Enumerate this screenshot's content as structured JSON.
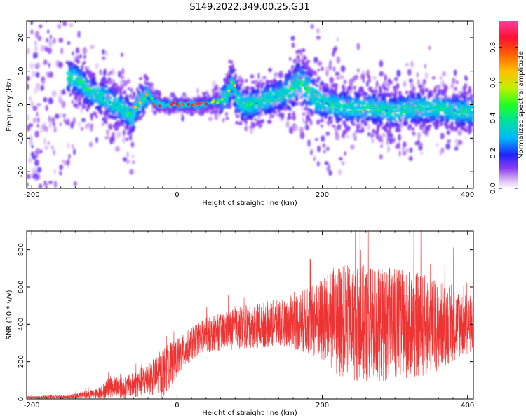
{
  "title": "S149.2022.349.00.25.G31",
  "chart_data": [
    {
      "type": "heatmap",
      "xlabel": "Height of straight line (km)",
      "ylabel": "Frequency (Hz)",
      "xlim": [
        -207,
        408
      ],
      "ylim": [
        -25,
        25
      ],
      "x_ticks": [
        "-200",
        "0",
        "200",
        "400"
      ],
      "x_tick_values": [
        -200,
        0,
        200,
        400
      ],
      "y_ticks": [
        "-20",
        "-10",
        "0",
        "10",
        "20"
      ],
      "y_tick_values": [
        -20,
        -10,
        0,
        10,
        20
      ],
      "colorbar": {
        "label": "Normalized spectral amplitude",
        "range": [
          0,
          0.95
        ],
        "ticks": [
          "0.0",
          "0.2",
          "0.4",
          "0.6",
          "0.8"
        ],
        "tick_values": [
          0.0,
          0.2,
          0.4,
          0.6,
          0.8
        ],
        "palette": [
          "#ffffff",
          "#b98ef0",
          "#7a2cf0",
          "#2020ff",
          "#00c8ff",
          "#00e070",
          "#30ff00",
          "#d8f000",
          "#ffa000",
          "#ff2020",
          "#ff40a0"
        ]
      },
      "ridge": {
        "x": [
          -140,
          -120,
          -100,
          -85,
          -70,
          -62,
          -55,
          -45,
          -38,
          -30,
          -20,
          0,
          30,
          60,
          70,
          76,
          82,
          90,
          100,
          115,
          130,
          145,
          155,
          160,
          168,
          178,
          190,
          210,
          240,
          270,
          300,
          330,
          360,
          385,
          405
        ],
        "y": [
          8,
          4,
          2,
          0,
          -2,
          -4,
          0,
          2,
          3,
          0.5,
          0,
          0,
          0,
          1,
          3,
          7,
          2,
          0,
          0,
          1,
          2,
          3,
          4,
          5,
          7,
          5,
          2,
          0,
          -1,
          -1,
          -2,
          -1,
          -1,
          -2,
          -2
        ]
      }
    },
    {
      "type": "line",
      "xlabel": "Height of straight line (km)",
      "ylabel": "SNR (10 * v/v)",
      "xlim": [
        -207,
        408
      ],
      "ylim": [
        0,
        900
      ],
      "x_ticks": [
        "-200",
        "0",
        "200",
        "400"
      ],
      "x_tick_values": [
        -200,
        0,
        200,
        400
      ],
      "y_ticks": [
        "0",
        "200",
        "400",
        "600",
        "800"
      ],
      "y_tick_values": [
        0,
        200,
        400,
        600,
        800
      ],
      "color": "#ee3333",
      "envelope": {
        "x": [
          -207,
          -150,
          -110,
          -90,
          -70,
          -50,
          -30,
          -20,
          0,
          30,
          60,
          100,
          150,
          190,
          220,
          260,
          300,
          340,
          380,
          408
        ],
        "mean": [
          8,
          12,
          30,
          70,
          60,
          90,
          120,
          140,
          220,
          330,
          360,
          390,
          410,
          420,
          420,
          400,
          400,
          390,
          400,
          400
        ],
        "amplitude": [
          6,
          10,
          25,
          60,
          60,
          80,
          100,
          140,
          100,
          90,
          100,
          120,
          130,
          200,
          300,
          320,
          300,
          280,
          200,
          150
        ]
      }
    }
  ]
}
